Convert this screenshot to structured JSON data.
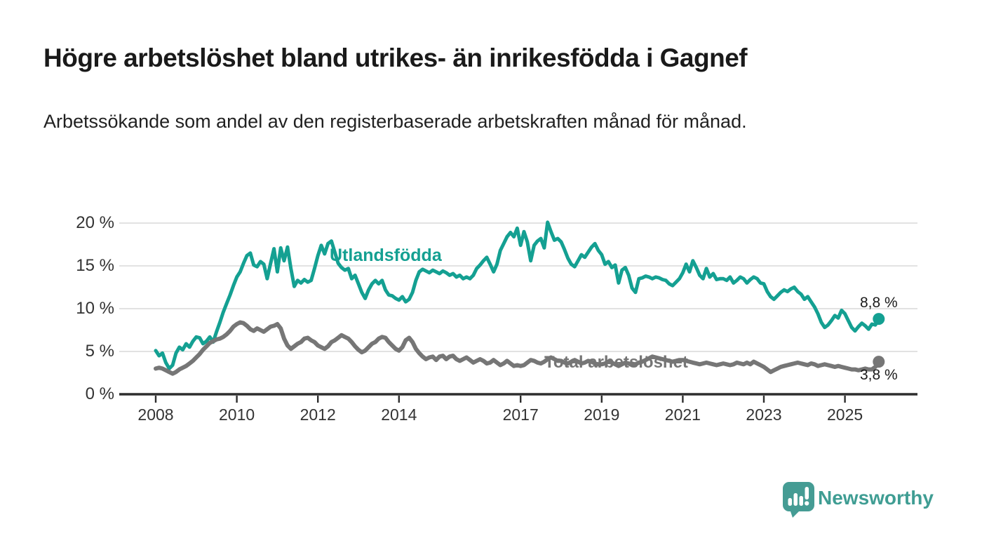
{
  "header": {
    "title": "Högre arbetslöshet bland utrikes- än inrikesfödda i Gagnef",
    "subtitle": "Arbetssökande som andel av den registerbaserade arbetskraften månad för månad."
  },
  "branding": {
    "name": "Newsworthy",
    "brand_color": "#3f9d93",
    "logo_icon": "speech-bubble-bar-chart-icon"
  },
  "chart_data": {
    "type": "line",
    "title": "Högre arbetslöshet bland utrikes- än inrikesfödda i Gagnef",
    "subtitle": "Arbetssökande som andel av den registerbaserade arbetskraften månad för månad.",
    "x_unit": "month",
    "x_start": "2008-01",
    "x_end": "2025-11",
    "ylim": [
      0,
      20.5
    ],
    "grid": "horizontal",
    "y_ticks": [
      {
        "value": 0,
        "label": "0 %"
      },
      {
        "value": 5,
        "label": "5 %"
      },
      {
        "value": 10,
        "label": "10 %"
      },
      {
        "value": 15,
        "label": "15 %"
      },
      {
        "value": 20,
        "label": "20 %"
      }
    ],
    "x_ticks": [
      {
        "year": 2008,
        "label": "2008"
      },
      {
        "year": 2010,
        "label": "2010"
      },
      {
        "year": 2012,
        "label": "2012"
      },
      {
        "year": 2014,
        "label": "2014"
      },
      {
        "year": 2017,
        "label": "2017"
      },
      {
        "year": 2019,
        "label": "2019"
      },
      {
        "year": 2021,
        "label": "2021"
      },
      {
        "year": 2023,
        "label": "2023"
      },
      {
        "year": 2025,
        "label": "2025"
      }
    ],
    "series": [
      {
        "id": "utlandsfodda",
        "name": "Utlandsfödda",
        "color": "#14a092",
        "stroke_width": 5,
        "end_value": 8.8,
        "end_label": "8,8 %",
        "values": [
          5.1,
          4.5,
          4.8,
          3.7,
          3.0,
          3.4,
          4.8,
          5.5,
          5.2,
          5.9,
          5.5,
          6.2,
          6.7,
          6.6,
          5.9,
          6.2,
          6.7,
          6.1,
          7.3,
          8.4,
          9.6,
          10.6,
          11.6,
          12.7,
          13.7,
          14.3,
          15.3,
          16.2,
          16.5,
          15.1,
          14.9,
          15.5,
          15.2,
          13.5,
          15.3,
          17.0,
          14.3,
          17.1,
          15.6,
          17.2,
          14.7,
          12.6,
          13.3,
          13.0,
          13.4,
          13.1,
          13.3,
          14.7,
          16.2,
          17.4,
          16.4,
          17.6,
          17.9,
          16.6,
          15.3,
          14.8,
          14.5,
          14.7,
          13.5,
          13.9,
          12.9,
          11.9,
          11.2,
          12.2,
          12.9,
          13.3,
          12.9,
          13.3,
          12.2,
          11.6,
          11.5,
          11.2,
          11.0,
          11.4,
          10.8,
          11.1,
          11.9,
          13.3,
          14.3,
          14.6,
          14.4,
          14.2,
          14.5,
          14.3,
          14.1,
          14.4,
          14.2,
          13.9,
          14.1,
          13.7,
          13.9,
          13.5,
          13.7,
          13.5,
          13.9,
          14.7,
          15.1,
          15.6,
          16.0,
          15.2,
          14.3,
          15.2,
          16.8,
          17.6,
          18.4,
          18.9,
          18.4,
          19.4,
          17.4,
          19.0,
          17.8,
          15.6,
          17.4,
          17.9,
          18.2,
          17.1,
          20.1,
          19.0,
          18.0,
          18.2,
          17.8,
          16.9,
          15.9,
          15.2,
          14.9,
          15.6,
          16.3,
          16.0,
          16.6,
          17.2,
          17.6,
          16.8,
          16.3,
          15.2,
          15.5,
          14.8,
          15.1,
          13.0,
          14.5,
          14.8,
          13.9,
          12.4,
          11.9,
          13.5,
          13.6,
          13.8,
          13.7,
          13.5,
          13.7,
          13.6,
          13.4,
          13.3,
          12.9,
          12.7,
          13.1,
          13.5,
          14.2,
          15.2,
          14.3,
          15.6,
          14.8,
          13.9,
          13.5,
          14.7,
          13.7,
          14.1,
          13.4,
          13.5,
          13.5,
          13.3,
          13.7,
          13.0,
          13.3,
          13.7,
          13.5,
          13.0,
          13.4,
          13.7,
          13.5,
          13.0,
          12.9,
          12.0,
          11.4,
          11.1,
          11.5,
          11.9,
          12.2,
          12.0,
          12.3,
          12.5,
          12.0,
          11.7,
          11.1,
          11.4,
          10.8,
          10.2,
          9.4,
          8.4,
          7.8,
          8.1,
          8.6,
          9.2,
          8.9,
          9.8,
          9.4,
          8.6,
          7.8,
          7.4,
          7.9,
          8.3,
          8.0,
          7.6,
          8.2,
          8.1,
          8.8
        ]
      },
      {
        "id": "total",
        "name": "Total arbetslöshet",
        "color": "#767676",
        "stroke_width": 6,
        "end_value": 3.8,
        "end_label": "3,8 %",
        "values": [
          3.0,
          3.1,
          3.0,
          2.8,
          2.6,
          2.4,
          2.6,
          2.9,
          3.1,
          3.3,
          3.6,
          3.9,
          4.3,
          4.7,
          5.2,
          5.6,
          6.0,
          6.2,
          6.4,
          6.5,
          6.7,
          7.0,
          7.4,
          7.9,
          8.2,
          8.4,
          8.3,
          8.0,
          7.6,
          7.4,
          7.7,
          7.5,
          7.3,
          7.6,
          7.9,
          8.0,
          8.2,
          7.7,
          6.5,
          5.7,
          5.3,
          5.6,
          5.9,
          6.1,
          6.5,
          6.6,
          6.3,
          6.1,
          5.7,
          5.5,
          5.3,
          5.6,
          6.1,
          6.3,
          6.6,
          6.9,
          6.7,
          6.5,
          6.1,
          5.6,
          5.2,
          4.9,
          5.1,
          5.5,
          5.9,
          6.1,
          6.5,
          6.7,
          6.6,
          6.1,
          5.7,
          5.3,
          5.1,
          5.5,
          6.3,
          6.6,
          6.1,
          5.3,
          4.8,
          4.4,
          4.1,
          4.3,
          4.4,
          4.0,
          4.4,
          4.5,
          4.1,
          4.4,
          4.5,
          4.1,
          3.9,
          4.1,
          4.3,
          4.0,
          3.7,
          3.9,
          4.1,
          3.9,
          3.6,
          3.7,
          4.0,
          3.7,
          3.4,
          3.6,
          3.9,
          3.6,
          3.3,
          3.4,
          3.3,
          3.4,
          3.7,
          4.0,
          3.9,
          3.7,
          3.6,
          3.8,
          4.1,
          4.3,
          4.1,
          3.9,
          3.9,
          3.7,
          3.6,
          3.8,
          4.0,
          3.8,
          3.6,
          3.7,
          3.9,
          3.8,
          3.6,
          3.5,
          3.5,
          3.6,
          3.8,
          3.7,
          3.5,
          3.3,
          3.5,
          3.7,
          3.6,
          3.4,
          3.5,
          3.7,
          3.8,
          4.0,
          4.2,
          4.4,
          4.3,
          4.2,
          4.1,
          4.0,
          3.9,
          3.8,
          3.9,
          4.0,
          4.0,
          3.9,
          3.8,
          3.7,
          3.6,
          3.5,
          3.6,
          3.7,
          3.6,
          3.5,
          3.4,
          3.5,
          3.6,
          3.5,
          3.4,
          3.5,
          3.7,
          3.6,
          3.5,
          3.7,
          3.5,
          3.8,
          3.6,
          3.4,
          3.2,
          2.9,
          2.6,
          2.8,
          3.0,
          3.2,
          3.3,
          3.4,
          3.5,
          3.6,
          3.7,
          3.6,
          3.5,
          3.4,
          3.6,
          3.5,
          3.3,
          3.4,
          3.5,
          3.4,
          3.3,
          3.2,
          3.3,
          3.2,
          3.1,
          3.0,
          2.9,
          2.9,
          2.8,
          2.9,
          3.0,
          2.9,
          2.9,
          3.2,
          3.8
        ]
      }
    ],
    "style": {
      "gridline_color": "#d9d9d9",
      "axis_color": "#2e2e2e",
      "value_label_color": "#1a1a1a"
    }
  }
}
